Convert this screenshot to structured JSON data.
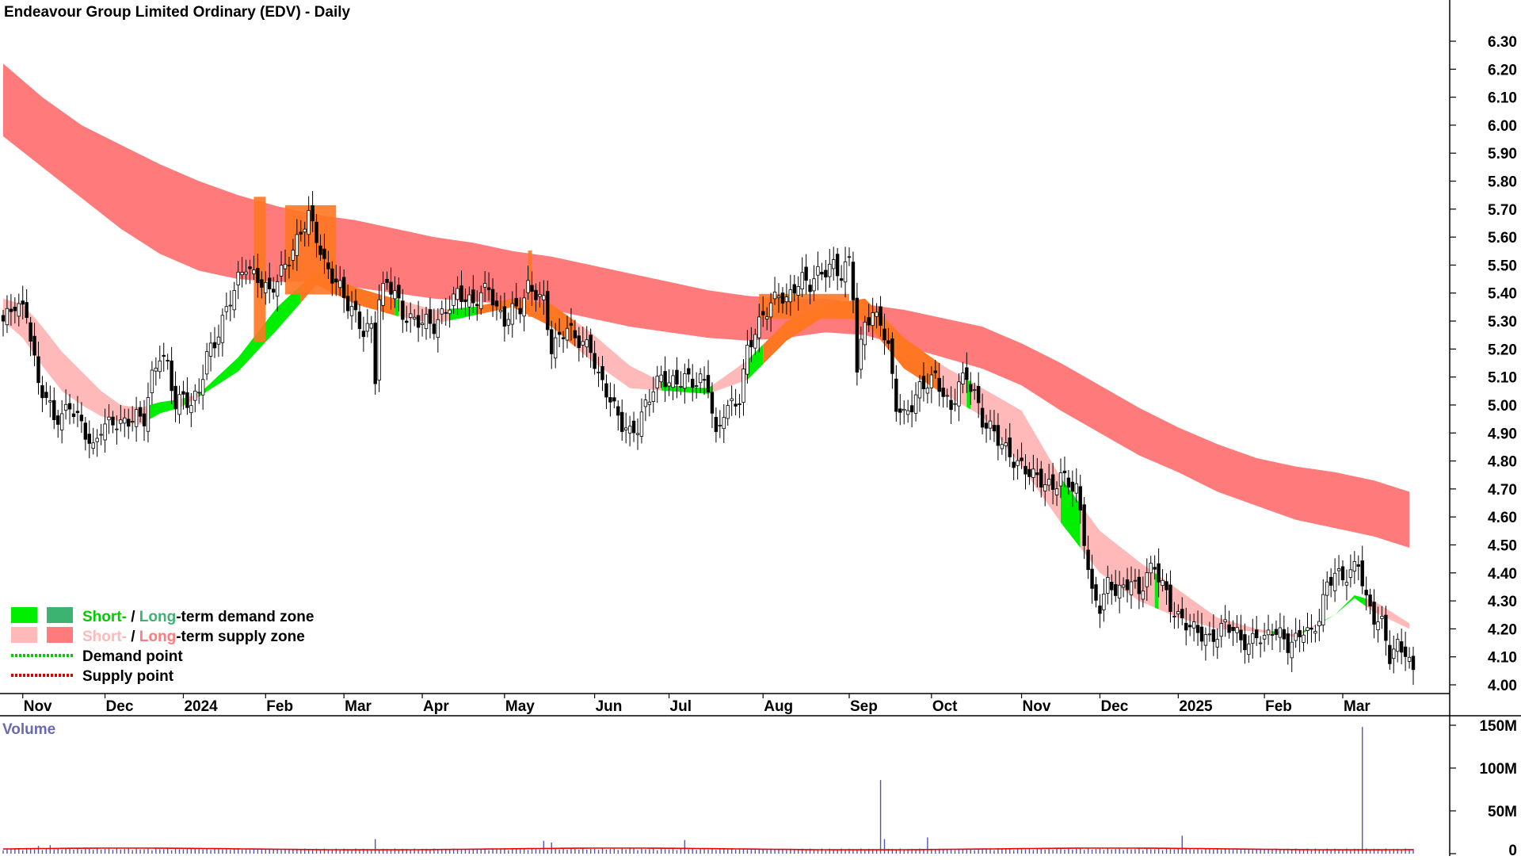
{
  "title": "Endeavour Group Limited Ordinary (EDV) - Daily",
  "colors": {
    "candle": "#000000",
    "long_supply": "#ff7b7b",
    "short_supply": "#ffb9b9",
    "long_demand": "#3cb371",
    "short_demand": "#00ee00",
    "overlap": "#ff7722",
    "volume": "#5555aa",
    "volume_avg": "#ee0000",
    "volume_label": "#6a6ab0",
    "legend_demand_text": "#00cc00",
    "legend_long_demand_text": "#3cb371",
    "legend_short_supply_text": "#ffb9b9",
    "legend_long_supply_text": "#ff7b7b",
    "demand_point": "#00cc00",
    "supply_point": "#dd0000"
  },
  "legend": {
    "demand_short": "Short-",
    "demand_slash": " / ",
    "demand_long": "Long",
    "demand_rest": "-term demand zone",
    "supply_short": "Short-",
    "supply_slash": " / ",
    "supply_long": "Long",
    "supply_rest": "-term supply zone",
    "demand_point": "Demand point",
    "supply_point": "Supply point"
  },
  "volume_panel": {
    "label": "Volume",
    "ticks": [
      "150M",
      "100M",
      "50M",
      "0"
    ]
  },
  "chart_data": {
    "type": "candlestick",
    "price_axis": {
      "ticks": [
        "6.30",
        "6.20",
        "6.10",
        "6.00",
        "5.90",
        "5.80",
        "5.70",
        "5.60",
        "5.50",
        "5.40",
        "5.30",
        "5.20",
        "5.10",
        "5.00",
        "4.90",
        "4.80",
        "4.70",
        "4.60",
        "4.50",
        "4.40",
        "4.30",
        "4.20",
        "4.10",
        "4.00"
      ],
      "ylim": [
        3.97,
        6.33
      ]
    },
    "x_axis": {
      "labels": [
        "Nov",
        "Dec",
        "2024",
        "Feb",
        "Mar",
        "Apr",
        "May",
        "Jun",
        "Jul",
        "Aug",
        "Sep",
        "Oct",
        "Nov",
        "Dec",
        "2025",
        "Feb",
        "Mar"
      ],
      "label_index": [
        5,
        26,
        46,
        67,
        87,
        107,
        128,
        151,
        170,
        194,
        216,
        237,
        260,
        280,
        300,
        322,
        342
      ]
    },
    "bars_total": 361,
    "close_anchors": [
      [
        0,
        5.3
      ],
      [
        3,
        5.36
      ],
      [
        6,
        5.33
      ],
      [
        9,
        5.07
      ],
      [
        11,
        5.03
      ],
      [
        13,
        4.95
      ],
      [
        15,
        4.96
      ],
      [
        17,
        5.0
      ],
      [
        20,
        4.93
      ],
      [
        23,
        4.84
      ],
      [
        25,
        4.92
      ],
      [
        28,
        4.94
      ],
      [
        30,
        4.93
      ],
      [
        34,
        4.96
      ],
      [
        36,
        4.95
      ],
      [
        38,
        5.1
      ],
      [
        40,
        5.18
      ],
      [
        42,
        5.14
      ],
      [
        44,
        5.0
      ],
      [
        46,
        5.03
      ],
      [
        48,
        5.0
      ],
      [
        50,
        5.05
      ],
      [
        52,
        5.18
      ],
      [
        54,
        5.22
      ],
      [
        56,
        5.3
      ],
      [
        58,
        5.38
      ],
      [
        60,
        5.45
      ],
      [
        62,
        5.5
      ],
      [
        64,
        5.46
      ],
      [
        66,
        5.44
      ],
      [
        68,
        5.4
      ],
      [
        70,
        5.45
      ],
      [
        72,
        5.5
      ],
      [
        74,
        5.55
      ],
      [
        76,
        5.62
      ],
      [
        78,
        5.68
      ],
      [
        80,
        5.6
      ],
      [
        82,
        5.5
      ],
      [
        84,
        5.46
      ],
      [
        86,
        5.42
      ],
      [
        88,
        5.36
      ],
      [
        90,
        5.32
      ],
      [
        92,
        5.26
      ],
      [
        94,
        5.28
      ],
      [
        95,
        5.1
      ],
      [
        96,
        5.38
      ],
      [
        98,
        5.44
      ],
      [
        100,
        5.4
      ],
      [
        102,
        5.32
      ],
      [
        105,
        5.3
      ],
      [
        108,
        5.3
      ],
      [
        110,
        5.28
      ],
      [
        112,
        5.32
      ],
      [
        114,
        5.36
      ],
      [
        116,
        5.4
      ],
      [
        118,
        5.38
      ],
      [
        120,
        5.36
      ],
      [
        122,
        5.4
      ],
      [
        124,
        5.42
      ],
      [
        126,
        5.34
      ],
      [
        128,
        5.3
      ],
      [
        130,
        5.34
      ],
      [
        132,
        5.35
      ],
      [
        134,
        5.42
      ],
      [
        136,
        5.4
      ],
      [
        138,
        5.37
      ],
      [
        140,
        5.2
      ],
      [
        142,
        5.24
      ],
      [
        144,
        5.28
      ],
      [
        146,
        5.24
      ],
      [
        148,
        5.22
      ],
      [
        150,
        5.2
      ],
      [
        152,
        5.1
      ],
      [
        154,
        5.05
      ],
      [
        156,
        4.99
      ],
      [
        158,
        4.93
      ],
      [
        160,
        4.9
      ],
      [
        162,
        4.92
      ],
      [
        164,
        5.0
      ],
      [
        166,
        5.06
      ],
      [
        168,
        5.1
      ],
      [
        170,
        5.08
      ],
      [
        172,
        5.08
      ],
      [
        174,
        5.1
      ],
      [
        176,
        5.08
      ],
      [
        178,
        5.09
      ],
      [
        180,
        5.07
      ],
      [
        182,
        4.88
      ],
      [
        184,
        4.98
      ],
      [
        186,
        5.0
      ],
      [
        188,
        5.02
      ],
      [
        190,
        5.2
      ],
      [
        192,
        5.26
      ],
      [
        194,
        5.32
      ],
      [
        196,
        5.36
      ],
      [
        198,
        5.4
      ],
      [
        200,
        5.37
      ],
      [
        202,
        5.42
      ],
      [
        204,
        5.45
      ],
      [
        206,
        5.43
      ],
      [
        208,
        5.47
      ],
      [
        210,
        5.48
      ],
      [
        212,
        5.5
      ],
      [
        214,
        5.46
      ],
      [
        216,
        5.52
      ],
      [
        217,
        5.4
      ],
      [
        218,
        5.12
      ],
      [
        220,
        5.3
      ],
      [
        222,
        5.32
      ],
      [
        224,
        5.3
      ],
      [
        226,
        5.2
      ],
      [
        228,
        5.0
      ],
      [
        230,
        4.96
      ],
      [
        232,
        5.0
      ],
      [
        234,
        5.06
      ],
      [
        236,
        5.08
      ],
      [
        238,
        5.1
      ],
      [
        240,
        5.04
      ],
      [
        242,
        4.98
      ],
      [
        244,
        5.08
      ],
      [
        246,
        5.1
      ],
      [
        248,
        5.04
      ],
      [
        250,
        4.94
      ],
      [
        252,
        4.92
      ],
      [
        254,
        4.88
      ],
      [
        256,
        4.84
      ],
      [
        258,
        4.8
      ],
      [
        260,
        4.78
      ],
      [
        262,
        4.76
      ],
      [
        264,
        4.74
      ],
      [
        266,
        4.72
      ],
      [
        268,
        4.7
      ],
      [
        270,
        4.75
      ],
      [
        272,
        4.72
      ],
      [
        274,
        4.7
      ],
      [
        276,
        4.52
      ],
      [
        278,
        4.32
      ],
      [
        280,
        4.28
      ],
      [
        282,
        4.36
      ],
      [
        284,
        4.34
      ],
      [
        286,
        4.34
      ],
      [
        288,
        4.38
      ],
      [
        290,
        4.32
      ],
      [
        292,
        4.4
      ],
      [
        294,
        4.42
      ],
      [
        296,
        4.36
      ],
      [
        298,
        4.28
      ],
      [
        300,
        4.24
      ],
      [
        302,
        4.22
      ],
      [
        304,
        4.2
      ],
      [
        306,
        4.18
      ],
      [
        308,
        4.16
      ],
      [
        310,
        4.18
      ],
      [
        312,
        4.22
      ],
      [
        314,
        4.2
      ],
      [
        316,
        4.16
      ],
      [
        318,
        4.14
      ],
      [
        320,
        4.18
      ],
      [
        322,
        4.16
      ],
      [
        324,
        4.2
      ],
      [
        326,
        4.18
      ],
      [
        328,
        4.14
      ],
      [
        330,
        4.16
      ],
      [
        332,
        4.2
      ],
      [
        334,
        4.18
      ],
      [
        336,
        4.24
      ],
      [
        338,
        4.36
      ],
      [
        340,
        4.4
      ],
      [
        342,
        4.38
      ],
      [
        344,
        4.4
      ],
      [
        346,
        4.44
      ],
      [
        348,
        4.3
      ],
      [
        350,
        4.24
      ],
      [
        352,
        4.22
      ],
      [
        354,
        4.1
      ],
      [
        356,
        4.14
      ],
      [
        358,
        4.12
      ],
      [
        360,
        4.04
      ]
    ],
    "long_zone": {
      "upper": [
        [
          0,
          6.22
        ],
        [
          10,
          6.1
        ],
        [
          20,
          6.0
        ],
        [
          30,
          5.93
        ],
        [
          40,
          5.86
        ],
        [
          50,
          5.8
        ],
        [
          60,
          5.75
        ],
        [
          70,
          5.71
        ],
        [
          80,
          5.68
        ],
        [
          90,
          5.66
        ],
        [
          100,
          5.63
        ],
        [
          110,
          5.6
        ],
        [
          120,
          5.58
        ],
        [
          130,
          5.55
        ],
        [
          140,
          5.53
        ],
        [
          150,
          5.5
        ],
        [
          160,
          5.47
        ],
        [
          170,
          5.44
        ],
        [
          180,
          5.41
        ],
        [
          190,
          5.39
        ],
        [
          200,
          5.38
        ],
        [
          210,
          5.38
        ],
        [
          220,
          5.36
        ],
        [
          230,
          5.34
        ],
        [
          240,
          5.31
        ],
        [
          250,
          5.28
        ],
        [
          260,
          5.22
        ],
        [
          270,
          5.15
        ],
        [
          280,
          5.07
        ],
        [
          290,
          4.99
        ],
        [
          300,
          4.92
        ],
        [
          310,
          4.86
        ],
        [
          320,
          4.81
        ],
        [
          330,
          4.78
        ],
        [
          340,
          4.76
        ],
        [
          350,
          4.73
        ],
        [
          359,
          4.69
        ]
      ],
      "lower": [
        [
          0,
          5.96
        ],
        [
          10,
          5.85
        ],
        [
          20,
          5.74
        ],
        [
          30,
          5.63
        ],
        [
          40,
          5.54
        ],
        [
          50,
          5.48
        ],
        [
          60,
          5.45
        ],
        [
          70,
          5.44
        ],
        [
          80,
          5.44
        ],
        [
          90,
          5.42
        ],
        [
          100,
          5.4
        ],
        [
          110,
          5.38
        ],
        [
          120,
          5.37
        ],
        [
          130,
          5.36
        ],
        [
          140,
          5.34
        ],
        [
          150,
          5.31
        ],
        [
          160,
          5.28
        ],
        [
          170,
          5.26
        ],
        [
          180,
          5.24
        ],
        [
          190,
          5.23
        ],
        [
          200,
          5.24
        ],
        [
          210,
          5.26
        ],
        [
          220,
          5.25
        ],
        [
          230,
          5.21
        ],
        [
          240,
          5.17
        ],
        [
          250,
          5.13
        ],
        [
          260,
          5.07
        ],
        [
          270,
          4.98
        ],
        [
          280,
          4.9
        ],
        [
          290,
          4.82
        ],
        [
          300,
          4.76
        ],
        [
          310,
          4.69
        ],
        [
          320,
          4.64
        ],
        [
          330,
          4.59
        ],
        [
          340,
          4.56
        ],
        [
          350,
          4.53
        ],
        [
          359,
          4.49
        ]
      ]
    },
    "short_zone": {
      "upper": [
        [
          0,
          5.38
        ],
        [
          5,
          5.36
        ],
        [
          10,
          5.28
        ],
        [
          15,
          5.19
        ],
        [
          20,
          5.12
        ],
        [
          25,
          5.05
        ],
        [
          30,
          5.0
        ],
        [
          35,
          4.99
        ],
        [
          40,
          5.01
        ],
        [
          45,
          5.02
        ],
        [
          50,
          5.04
        ],
        [
          60,
          5.17
        ],
        [
          70,
          5.35
        ],
        [
          80,
          5.48
        ],
        [
          90,
          5.42
        ],
        [
          100,
          5.38
        ],
        [
          110,
          5.34
        ],
        [
          120,
          5.35
        ],
        [
          130,
          5.38
        ],
        [
          140,
          5.36
        ],
        [
          150,
          5.26
        ],
        [
          160,
          5.14
        ],
        [
          170,
          5.07
        ],
        [
          180,
          5.06
        ],
        [
          190,
          5.16
        ],
        [
          200,
          5.3
        ],
        [
          210,
          5.36
        ],
        [
          220,
          5.38
        ],
        [
          230,
          5.24
        ],
        [
          240,
          5.14
        ],
        [
          250,
          5.06
        ],
        [
          260,
          4.98
        ],
        [
          270,
          4.74
        ],
        [
          280,
          4.55
        ],
        [
          290,
          4.44
        ],
        [
          300,
          4.34
        ],
        [
          310,
          4.24
        ],
        [
          320,
          4.2
        ],
        [
          330,
          4.18
        ],
        [
          340,
          4.25
        ],
        [
          345,
          4.32
        ],
        [
          350,
          4.3
        ],
        [
          359,
          4.22
        ]
      ],
      "lower": [
        [
          0,
          5.3
        ],
        [
          5,
          5.24
        ],
        [
          10,
          5.14
        ],
        [
          15,
          5.05
        ],
        [
          20,
          5.0
        ],
        [
          25,
          4.96
        ],
        [
          30,
          4.94
        ],
        [
          35,
          4.93
        ],
        [
          40,
          4.97
        ],
        [
          45,
          4.99
        ],
        [
          50,
          5.03
        ],
        [
          60,
          5.12
        ],
        [
          70,
          5.27
        ],
        [
          80,
          5.43
        ],
        [
          90,
          5.36
        ],
        [
          100,
          5.32
        ],
        [
          110,
          5.29
        ],
        [
          120,
          5.32
        ],
        [
          130,
          5.35
        ],
        [
          140,
          5.28
        ],
        [
          150,
          5.16
        ],
        [
          160,
          5.06
        ],
        [
          170,
          5.05
        ],
        [
          180,
          5.04
        ],
        [
          190,
          5.09
        ],
        [
          200,
          5.23
        ],
        [
          210,
          5.32
        ],
        [
          220,
          5.3
        ],
        [
          230,
          5.13
        ],
        [
          240,
          5.04
        ],
        [
          250,
          4.96
        ],
        [
          260,
          4.78
        ],
        [
          270,
          4.58
        ],
        [
          280,
          4.4
        ],
        [
          290,
          4.3
        ],
        [
          300,
          4.24
        ],
        [
          310,
          4.2
        ],
        [
          320,
          4.19
        ],
        [
          330,
          4.17
        ],
        [
          340,
          4.25
        ],
        [
          345,
          4.31
        ],
        [
          350,
          4.26
        ],
        [
          359,
          4.2
        ]
      ]
    },
    "volume": {
      "ylim": [
        0,
        150
      ],
      "base": 4,
      "spikes": [
        [
          9,
          9
        ],
        [
          12,
          10
        ],
        [
          48,
          7
        ],
        [
          95,
          17
        ],
        [
          138,
          15
        ],
        [
          140,
          13
        ],
        [
          160,
          7
        ],
        [
          174,
          16
        ],
        [
          224,
          86
        ],
        [
          225,
          17
        ],
        [
          236,
          19
        ],
        [
          301,
          21
        ],
        [
          347,
          148
        ]
      ]
    }
  }
}
